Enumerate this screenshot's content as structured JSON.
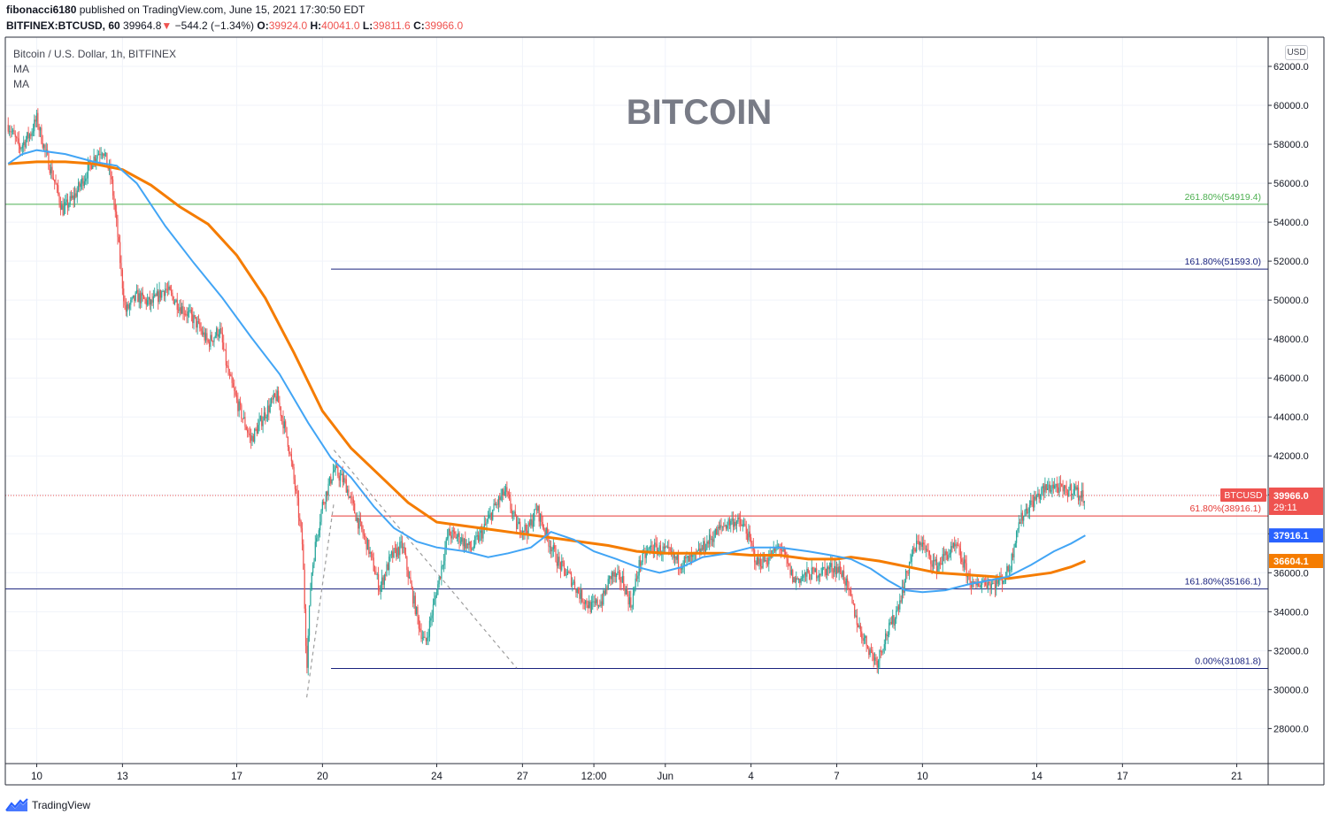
{
  "header": {
    "author": "fibonacci6180",
    "published": "published on TradingView.com, June 15, 2021 17:30:50 EDT",
    "symbol": "BITFINEX:BTCUSD, 60",
    "last": "39964.8",
    "change_arrow": "▼",
    "change": "−544.2 (−1.34%)",
    "o_label": "O:",
    "o_value": "39924.0",
    "h_label": "H:",
    "h_value": "40041.0",
    "l_label": "L:",
    "l_value": "39811.6",
    "c_label": "C:",
    "c_value": "39966.0"
  },
  "legend": {
    "title": "Bitcoin / U.S. Dollar, 1h, BITFINEX",
    "ma1": "MA",
    "ma2": "MA"
  },
  "currency_button": "USD",
  "footer": {
    "brand": "TradingView",
    "logo_icon": "tradingview-logo-icon"
  },
  "colors": {
    "up": "#26a69a",
    "down": "#ef5350",
    "ma_fast": "#42a5f5",
    "ma_slow": "#f57c00",
    "fib_green": "#4caf50",
    "fib_navy": "#1a237e",
    "fib_red": "#e53935",
    "label_blue": "#2962ff",
    "grid": "#f0f3fa",
    "text": "#131722"
  },
  "chart_data": {
    "type": "candlestick",
    "title": "BITCOIN",
    "series_label": "BTCUSD",
    "ylim": [
      26200,
      63500
    ],
    "y_ticks": [
      "28000.0",
      "30000.0",
      "32000.0",
      "34000.0",
      "36000.0",
      "38000.0",
      "40000.0",
      "42000.0",
      "44000.0",
      "46000.0",
      "48000.0",
      "50000.0",
      "52000.0",
      "54000.0",
      "56000.0",
      "58000.0",
      "60000.0",
      "62000.0"
    ],
    "x_ticks": [
      {
        "label": "10",
        "day": 10
      },
      {
        "label": "13",
        "day": 13
      },
      {
        "label": "17",
        "day": 17
      },
      {
        "label": "20",
        "day": 20
      },
      {
        "label": "24",
        "day": 24
      },
      {
        "label": "27",
        "day": 27
      },
      {
        "label": "12:00",
        "day": 29.5
      },
      {
        "label": "Jun",
        "day": 32
      },
      {
        "label": "4",
        "day": 35
      },
      {
        "label": "7",
        "day": 38
      },
      {
        "label": "10",
        "day": 41
      },
      {
        "label": "14",
        "day": 45
      },
      {
        "label": "17",
        "day": 48
      },
      {
        "label": "21",
        "day": 52
      }
    ],
    "xlim_days": [
      8.9,
      53.1
    ],
    "last_day": 46.7,
    "close_path": [
      [
        9.0,
        59000
      ],
      [
        9.4,
        57800
      ],
      [
        9.8,
        58600
      ],
      [
        10.0,
        59300
      ],
      [
        10.3,
        57600
      ],
      [
        10.6,
        56200
      ],
      [
        10.9,
        54600
      ],
      [
        11.3,
        55300
      ],
      [
        11.7,
        56400
      ],
      [
        12.0,
        57300
      ],
      [
        12.3,
        57800
      ],
      [
        12.6,
        56300
      ],
      [
        12.8,
        53800
      ],
      [
        12.95,
        51500
      ],
      [
        13.1,
        49400
      ],
      [
        13.5,
        50200
      ],
      [
        14.0,
        49800
      ],
      [
        14.5,
        50600
      ],
      [
        15.0,
        49700
      ],
      [
        15.5,
        49000
      ],
      [
        16.0,
        47800
      ],
      [
        16.4,
        48500
      ],
      [
        16.7,
        46200
      ],
      [
        17.0,
        44800
      ],
      [
        17.5,
        42800
      ],
      [
        18.0,
        44200
      ],
      [
        18.4,
        45100
      ],
      [
        18.8,
        42700
      ],
      [
        19.1,
        39800
      ],
      [
        19.3,
        37400
      ],
      [
        19.45,
        31200
      ],
      [
        19.6,
        35800
      ],
      [
        19.8,
        37900
      ],
      [
        20.0,
        39500
      ],
      [
        20.4,
        41300
      ],
      [
        20.8,
        40600
      ],
      [
        21.2,
        38800
      ],
      [
        21.6,
        37300
      ],
      [
        22.0,
        35200
      ],
      [
        22.4,
        36800
      ],
      [
        22.8,
        37400
      ],
      [
        23.1,
        35200
      ],
      [
        23.4,
        33200
      ],
      [
        23.6,
        32300
      ],
      [
        23.8,
        33700
      ],
      [
        24.1,
        35800
      ],
      [
        24.4,
        38000
      ],
      [
        24.8,
        37800
      ],
      [
        25.2,
        37200
      ],
      [
        25.6,
        38100
      ],
      [
        26.0,
        39300
      ],
      [
        26.4,
        40200
      ],
      [
        26.8,
        38400
      ],
      [
        27.2,
        38200
      ],
      [
        27.5,
        39300
      ],
      [
        27.9,
        37700
      ],
      [
        28.3,
        36400
      ],
      [
        28.7,
        35700
      ],
      [
        29.0,
        34900
      ],
      [
        29.4,
        34200
      ],
      [
        29.8,
        34600
      ],
      [
        30.1,
        35900
      ],
      [
        30.5,
        35600
      ],
      [
        30.8,
        34300
      ],
      [
        31.1,
        36500
      ],
      [
        31.5,
        37300
      ],
      [
        32.0,
        37100
      ],
      [
        32.5,
        36500
      ],
      [
        33.0,
        36700
      ],
      [
        33.5,
        37600
      ],
      [
        34.0,
        38400
      ],
      [
        34.4,
        38700
      ],
      [
        34.8,
        38300
      ],
      [
        35.2,
        36500
      ],
      [
        35.6,
        36700
      ],
      [
        36.0,
        37400
      ],
      [
        36.5,
        35600
      ],
      [
        37.0,
        35900
      ],
      [
        37.5,
        36100
      ],
      [
        37.9,
        36300
      ],
      [
        38.2,
        36000
      ],
      [
        38.5,
        34600
      ],
      [
        38.8,
        33100
      ],
      [
        39.1,
        32200
      ],
      [
        39.4,
        31400
      ],
      [
        39.7,
        32700
      ],
      [
        40.0,
        33600
      ],
      [
        40.3,
        35100
      ],
      [
        40.6,
        36800
      ],
      [
        40.9,
        37700
      ],
      [
        41.2,
        36900
      ],
      [
        41.5,
        36300
      ],
      [
        41.8,
        36900
      ],
      [
        42.2,
        37300
      ],
      [
        42.5,
        36200
      ],
      [
        42.8,
        35200
      ],
      [
        43.1,
        35600
      ],
      [
        43.5,
        35400
      ],
      [
        43.9,
        35800
      ],
      [
        44.1,
        36500
      ],
      [
        44.3,
        38300
      ],
      [
        44.6,
        39200
      ],
      [
        44.9,
        39700
      ],
      [
        45.2,
        40200
      ],
      [
        45.6,
        40500
      ],
      [
        46.0,
        40100
      ],
      [
        46.3,
        40400
      ],
      [
        46.5,
        39900
      ],
      [
        46.7,
        39966
      ]
    ],
    "ma_fast": {
      "name": "MA",
      "path": [
        [
          9.0,
          57000
        ],
        [
          9.5,
          57500
        ],
        [
          10.0,
          57700
        ],
        [
          11.0,
          57500
        ],
        [
          12.0,
          57100
        ],
        [
          12.8,
          56900
        ],
        [
          13.5,
          56000
        ],
        [
          14.5,
          53800
        ],
        [
          15.5,
          51900
        ],
        [
          16.5,
          50100
        ],
        [
          17.5,
          48100
        ],
        [
          18.5,
          46200
        ],
        [
          19.5,
          43700
        ],
        [
          20.3,
          41900
        ],
        [
          21.0,
          40900
        ],
        [
          21.8,
          39400
        ],
        [
          22.5,
          38300
        ],
        [
          23.3,
          37600
        ],
        [
          24.0,
          37300
        ],
        [
          25.0,
          37100
        ],
        [
          25.8,
          36800
        ],
        [
          26.5,
          37000
        ],
        [
          27.3,
          37300
        ],
        [
          28.0,
          38100
        ],
        [
          28.8,
          37700
        ],
        [
          29.5,
          37100
        ],
        [
          30.3,
          36700
        ],
        [
          31.0,
          36300
        ],
        [
          31.8,
          36000
        ],
        [
          32.6,
          36300
        ],
        [
          33.3,
          36800
        ],
        [
          34.2,
          37000
        ],
        [
          35.0,
          37300
        ],
        [
          36.0,
          37300
        ],
        [
          37.0,
          37100
        ],
        [
          37.8,
          36900
        ],
        [
          38.5,
          36700
        ],
        [
          39.2,
          36200
        ],
        [
          39.8,
          35600
        ],
        [
          40.4,
          35100
        ],
        [
          41.0,
          35000
        ],
        [
          41.8,
          35100
        ],
        [
          42.6,
          35400
        ],
        [
          43.3,
          35600
        ],
        [
          44.0,
          35800
        ],
        [
          44.8,
          36400
        ],
        [
          45.6,
          37100
        ],
        [
          46.2,
          37500
        ],
        [
          46.7,
          37916
        ]
      ]
    },
    "ma_slow": {
      "name": "MA",
      "path": [
        [
          9.0,
          57000
        ],
        [
          10.0,
          57100
        ],
        [
          11.0,
          57100
        ],
        [
          12.0,
          57000
        ],
        [
          13.0,
          56700
        ],
        [
          14.0,
          55900
        ],
        [
          15.0,
          54800
        ],
        [
          16.0,
          53900
        ],
        [
          17.0,
          52300
        ],
        [
          18.0,
          50100
        ],
        [
          19.0,
          47300
        ],
        [
          20.0,
          44300
        ],
        [
          21.0,
          42400
        ],
        [
          22.0,
          41000
        ],
        [
          23.0,
          39600
        ],
        [
          24.0,
          38600
        ],
        [
          25.0,
          38400
        ],
        [
          26.0,
          38200
        ],
        [
          27.0,
          38000
        ],
        [
          28.0,
          37800
        ],
        [
          29.0,
          37600
        ],
        [
          30.0,
          37400
        ],
        [
          31.0,
          37100
        ],
        [
          32.0,
          37000
        ],
        [
          33.0,
          37000
        ],
        [
          34.0,
          37000
        ],
        [
          35.0,
          36900
        ],
        [
          36.0,
          36900
        ],
        [
          37.0,
          36700
        ],
        [
          38.0,
          36700
        ],
        [
          38.5,
          36800
        ],
        [
          39.5,
          36600
        ],
        [
          40.5,
          36300
        ],
        [
          41.5,
          36000
        ],
        [
          42.5,
          35900
        ],
        [
          43.5,
          35800
        ],
        [
          44.0,
          35700
        ],
        [
          44.5,
          35800
        ],
        [
          45.5,
          36000
        ],
        [
          46.2,
          36300
        ],
        [
          46.7,
          36604
        ]
      ]
    },
    "fib_levels": [
      {
        "label": "261.80%(54919.4)",
        "value": 54919.4,
        "color": "#4caf50",
        "x_start_day": 8.9
      },
      {
        "label": "161.80%(51593.0)",
        "value": 51593.0,
        "color": "#1a237e",
        "x_start_day": 20.3
      },
      {
        "label": "61.80%(38916.1)",
        "value": 38916.1,
        "color": "#e53935",
        "x_start_day": 20.3
      },
      {
        "label": "161.80%(35166.1)",
        "value": 35166.1,
        "color": "#1a237e",
        "x_start_day": 8.9
      },
      {
        "label": "0.00%(31081.8)",
        "value": 31081.8,
        "color": "#1a237e",
        "x_start_day": 20.3
      }
    ],
    "trend_lines": [
      {
        "from": [
          20.4,
          42300
        ],
        "to": [
          26.8,
          31100
        ],
        "color": "#9e9e9e"
      },
      {
        "from": [
          19.45,
          29600
        ],
        "to": [
          20.4,
          39600
        ],
        "color": "#9e9e9e"
      }
    ],
    "price_labels": [
      {
        "text": "39966.0",
        "sub": "29:11",
        "value": 39966.0,
        "color": "#ef5350"
      },
      {
        "text": "37916.1",
        "value": 37916.1,
        "color": "#2962ff"
      },
      {
        "text": "36604.1",
        "value": 36604.1,
        "color": "#f57c00"
      }
    ],
    "last_price": 39966.0
  }
}
